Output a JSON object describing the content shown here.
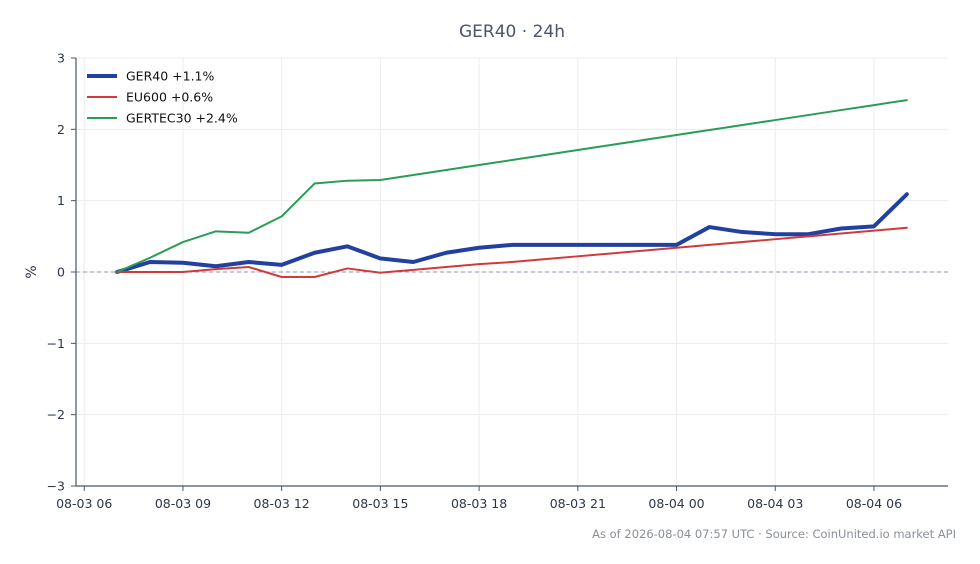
{
  "chart_data": {
    "type": "line",
    "title": "GER40 · 24h",
    "ylabel": "%",
    "xlabel": "",
    "ylim": [
      -3,
      3
    ],
    "y_ticks": [
      3,
      2,
      1,
      0,
      -1,
      -2,
      -3
    ],
    "y_tick_labels": [
      "3",
      "2",
      "1",
      "0",
      "−1",
      "−2",
      "−3"
    ],
    "x_ticks": [
      "08-03 06",
      "08-03 09",
      "08-03 12",
      "08-03 15",
      "08-03 18",
      "08-03 21",
      "08-04 00",
      "08-04 03",
      "08-04 06"
    ],
    "x": [
      "08-03 07",
      "08-03 08",
      "08-03 09",
      "08-03 10",
      "08-03 11",
      "08-03 12",
      "08-03 13",
      "08-03 14",
      "08-03 15",
      "08-03 16",
      "08-03 17",
      "08-03 18",
      "08-03 19",
      "08-03 20",
      "08-03 21",
      "08-03 22",
      "08-03 23",
      "08-04 00",
      "08-04 01",
      "08-04 02",
      "08-04 03",
      "08-04 04",
      "08-04 05",
      "08-04 06",
      "08-04 07"
    ],
    "grid": true,
    "zero_line": "dashed",
    "legend_position": "top-left",
    "series": [
      {
        "name": "GER40 +1.1%",
        "color": "#2240a0",
        "values": [
          0.0,
          0.14,
          0.13,
          0.08,
          0.14,
          0.1,
          0.27,
          0.36,
          0.19,
          0.14,
          0.27,
          0.34,
          0.38,
          0.38,
          0.38,
          0.38,
          0.38,
          0.38,
          0.63,
          0.56,
          0.53,
          0.53,
          0.61,
          0.64,
          1.09
        ]
      },
      {
        "name": "EU600 +0.6%",
        "color": "#d03a3a",
        "values": [
          0.0,
          0.0,
          0.0,
          0.04,
          0.07,
          -0.07,
          -0.07,
          0.05,
          -0.01,
          0.03,
          0.07,
          0.11,
          0.14,
          0.18,
          0.22,
          0.26,
          0.3,
          0.34,
          0.38,
          0.42,
          0.46,
          0.5,
          0.54,
          0.58,
          0.62
        ]
      },
      {
        "name": "GERTEC30 +2.4%",
        "color": "#2a9d55",
        "values": [
          0.0,
          0.2,
          0.42,
          0.57,
          0.55,
          0.78,
          1.24,
          1.28,
          1.29,
          1.36,
          1.43,
          1.5,
          1.57,
          1.64,
          1.71,
          1.78,
          1.85,
          1.92,
          1.99,
          2.06,
          2.13,
          2.2,
          2.27,
          2.34,
          2.41
        ]
      }
    ]
  },
  "footer": {
    "source_text": "As of 2026-08-04 07:57 UTC · Source: CoinUnited.io market API"
  }
}
